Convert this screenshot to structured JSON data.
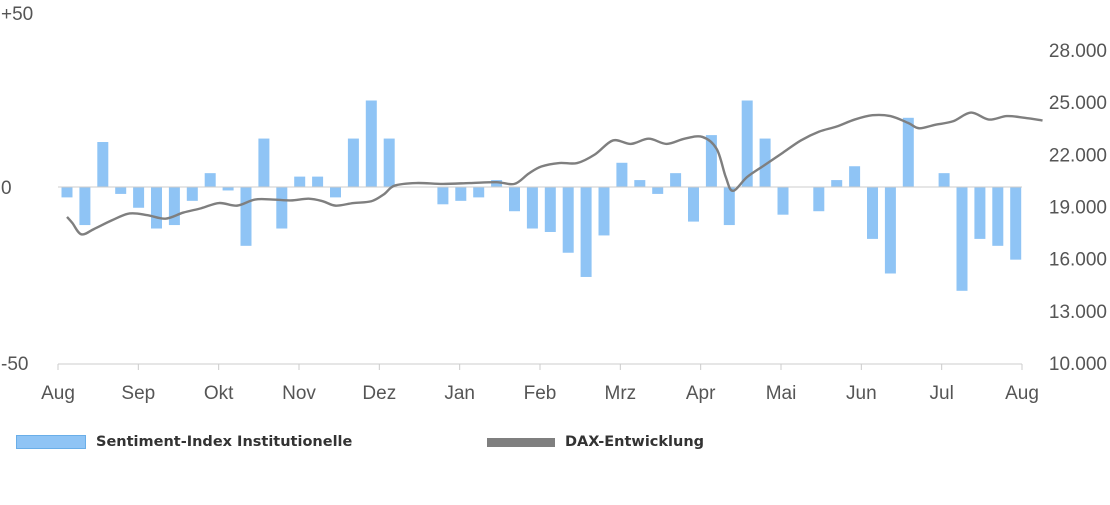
{
  "chart_data": {
    "type": "bar+line",
    "colors": {
      "bars": "#8fc4f5",
      "line": "#7f7f7f",
      "axis": "#cccccc",
      "text": "#555555"
    },
    "x_ticks": [
      "Aug",
      "Sep",
      "Okt",
      "Nov",
      "Dez",
      "Jan",
      "Feb",
      "Mrz",
      "Apr",
      "Mai",
      "Jun",
      "Jul",
      "Aug"
    ],
    "left_axis": {
      "ylim": [
        -50,
        50
      ],
      "ticks": [
        "+50",
        "0",
        "-50"
      ]
    },
    "right_axis": {
      "ylim": [
        10000,
        28000
      ],
      "ticks": [
        "28.000",
        "25.000",
        "22.000",
        "19.000",
        "16.000",
        "13.000",
        "10.000"
      ]
    },
    "bar_series": {
      "name": "Sentiment-Index Institutionelle",
      "values": [
        -3,
        -11,
        13,
        -2,
        -6,
        -12,
        -11,
        -4,
        4,
        -1,
        -17,
        14,
        -12,
        3,
        3,
        -3,
        14,
        25,
        14,
        null,
        null,
        -5,
        -4,
        -3,
        2,
        -7,
        -12,
        -13,
        -19,
        -26,
        -14,
        7,
        2,
        -2,
        4,
        -10,
        15,
        -11,
        25,
        14,
        -8,
        null,
        -7,
        2,
        6,
        -15,
        -25,
        20,
        null,
        4,
        -30,
        -15,
        -17,
        -21
      ]
    },
    "line_series": {
      "name": "DAX-Entwicklung",
      "points": [
        [
          0,
          18400
        ],
        [
          0.3,
          18050
        ],
        [
          0.8,
          17400
        ],
        [
          1.5,
          17700
        ],
        [
          2.5,
          18200
        ],
        [
          3.5,
          18600
        ],
        [
          4.5,
          18500
        ],
        [
          5.5,
          18300
        ],
        [
          6.5,
          18650
        ],
        [
          7.5,
          18900
        ],
        [
          8.5,
          19200
        ],
        [
          9.5,
          19050
        ],
        [
          10.5,
          19400
        ],
        [
          11.5,
          19400
        ],
        [
          12.5,
          19350
        ],
        [
          13.5,
          19450
        ],
        [
          14.3,
          19300
        ],
        [
          15,
          19050
        ],
        [
          16,
          19200
        ],
        [
          17,
          19300
        ],
        [
          17.7,
          19700
        ],
        [
          18.3,
          20200
        ],
        [
          19.5,
          20350
        ],
        [
          21,
          20300
        ],
        [
          22.5,
          20350
        ],
        [
          24,
          20400
        ],
        [
          25,
          20300
        ],
        [
          25.8,
          20900
        ],
        [
          26.5,
          21300
        ],
        [
          27.5,
          21500
        ],
        [
          28.5,
          21500
        ],
        [
          29.5,
          22000
        ],
        [
          30.5,
          22800
        ],
        [
          31.5,
          22600
        ],
        [
          32.5,
          22900
        ],
        [
          33.5,
          22600
        ],
        [
          34.5,
          22900
        ],
        [
          35.5,
          23000
        ],
        [
          36.3,
          22300
        ],
        [
          36.8,
          20700
        ],
        [
          37.2,
          19900
        ],
        [
          38,
          20700
        ],
        [
          39,
          21400
        ],
        [
          40,
          22100
        ],
        [
          41,
          22800
        ],
        [
          42,
          23300
        ],
        [
          43,
          23600
        ],
        [
          44,
          24000
        ],
        [
          45,
          24250
        ],
        [
          46,
          24200
        ],
        [
          47,
          23800
        ],
        [
          47.6,
          23500
        ],
        [
          48.5,
          23700
        ],
        [
          49.5,
          23900
        ],
        [
          50.5,
          24400
        ],
        [
          51.5,
          24000
        ],
        [
          52.5,
          24200
        ],
        [
          53.5,
          24100
        ],
        [
          54.5,
          23950
        ]
      ]
    },
    "legend": [
      {
        "label": "Sentiment-Index Institutionelle"
      },
      {
        "label": "DAX-Entwicklung"
      }
    ]
  }
}
